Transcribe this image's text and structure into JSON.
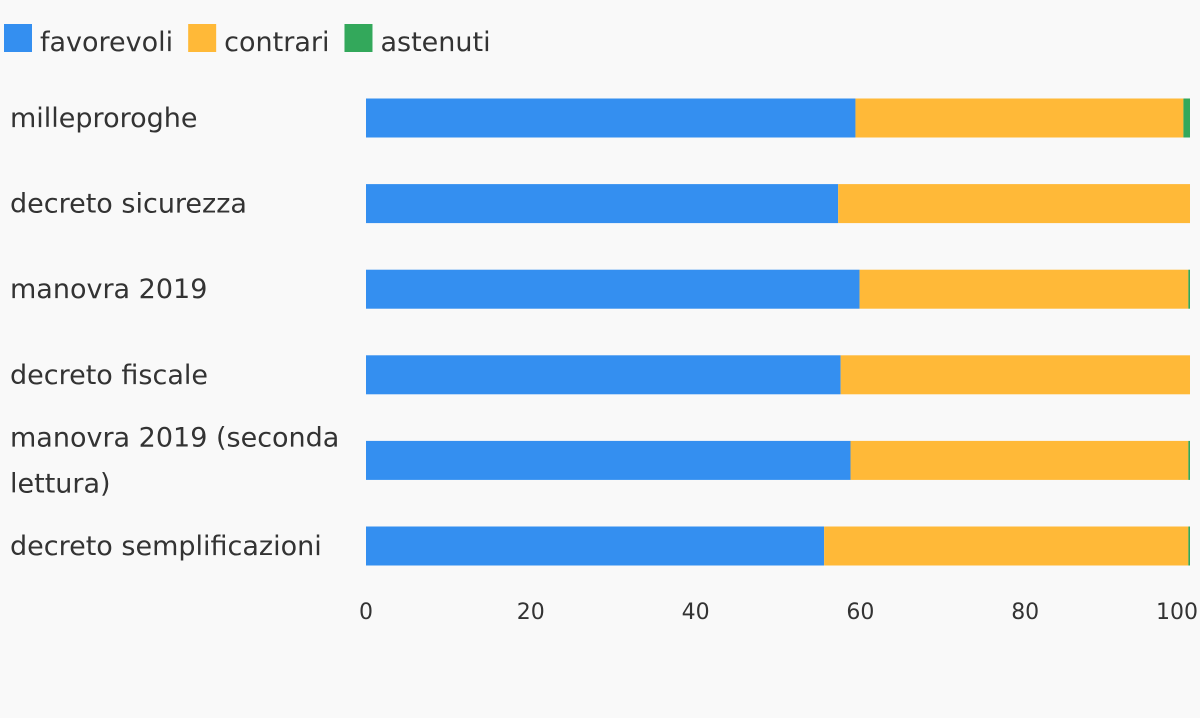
{
  "chart_data": {
    "type": "bar",
    "orientation": "horizontal",
    "stacked": true,
    "categories": [
      "milleproroghe",
      "decreto sicurezza",
      "manovra 2019",
      "decreto fiscale",
      "manovra 2019 (seconda lettura)",
      "decreto semplificazioni"
    ],
    "series": [
      {
        "name": "favorevoli",
        "color": "#348ff0",
        "values": [
          59.4,
          57.3,
          59.9,
          57.6,
          58.8,
          55.6
        ]
      },
      {
        "name": "contrari",
        "color": "#ffb938",
        "values": [
          39.8,
          42.7,
          39.9,
          42.4,
          41.0,
          44.2
        ]
      },
      {
        "name": "astenuti",
        "color": "#33a85b",
        "values": [
          0.8,
          0.0,
          0.2,
          0.0,
          0.2,
          0.2
        ]
      }
    ],
    "xlim": [
      0,
      100
    ],
    "xticks": [
      "0",
      "20",
      "40",
      "60",
      "80",
      "100"
    ],
    "legend_position": "top-left",
    "grid": false,
    "title": "",
    "xlabel": "",
    "ylabel": ""
  }
}
